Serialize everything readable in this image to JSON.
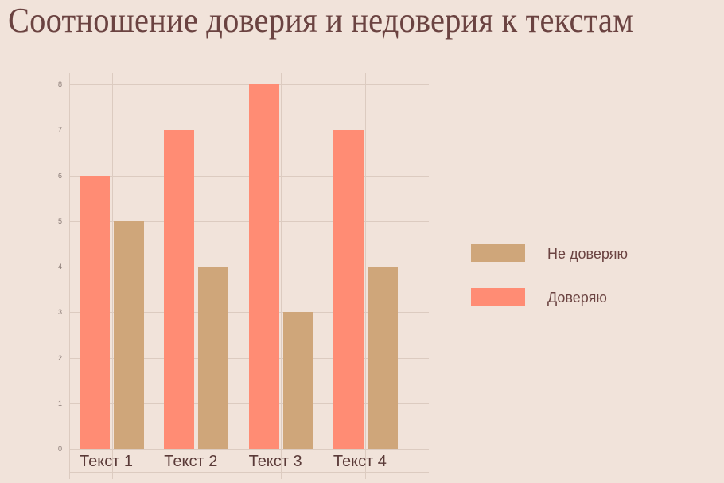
{
  "title": "Соотношение доверия и недоверия к текстам",
  "chart_data": {
    "type": "bar",
    "title": "Соотношение доверия и недоверия к текстам",
    "categories": [
      "Текст 1",
      "Текст 2",
      "Текст 3",
      "Текст 4"
    ],
    "series": [
      {
        "name": "Доверяю",
        "color": "#ff8c74",
        "values": [
          6,
          7,
          8,
          7
        ]
      },
      {
        "name": "Не доверяю",
        "color": "#cfa67a",
        "values": [
          5,
          4,
          3,
          4
        ]
      }
    ],
    "xlabel": "",
    "ylabel": "",
    "ylim": [
      0,
      8
    ],
    "yticks": [
      "0",
      "1",
      "2",
      "3",
      "4",
      "5",
      "6",
      "7",
      "8"
    ],
    "grid": true,
    "legend_position": "right",
    "legend": [
      {
        "label": "Не доверяю",
        "color": "#cfa67a"
      },
      {
        "label": "Доверяю",
        "color": "#ff8c74"
      }
    ]
  }
}
